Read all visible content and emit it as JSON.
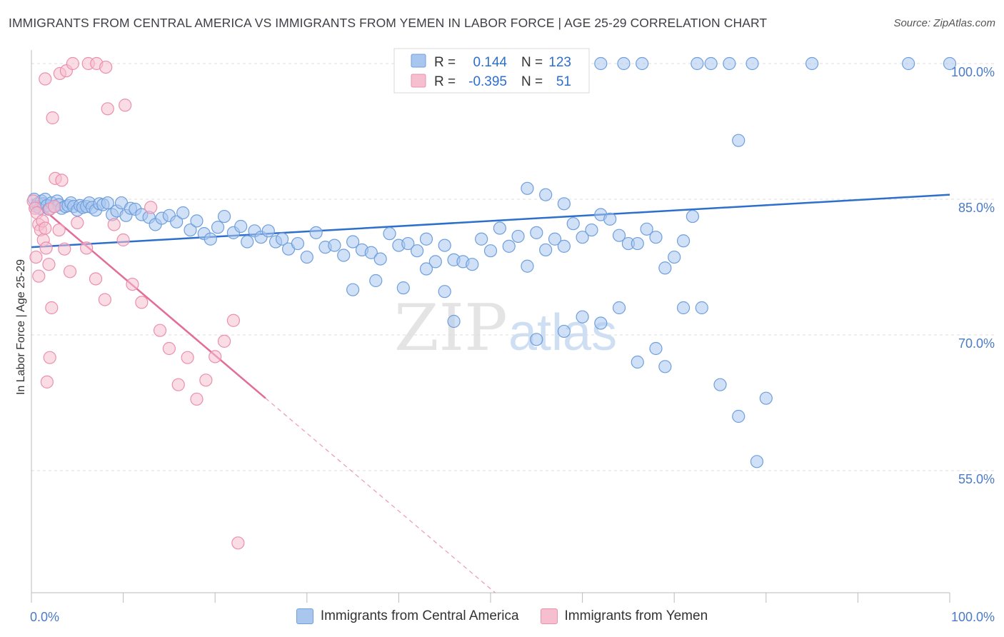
{
  "title": "IMMIGRANTS FROM CENTRAL AMERICA VS IMMIGRANTS FROM YEMEN IN LABOR FORCE | AGE 25-29 CORRELATION CHART",
  "source": "Source: ZipAtlas.com",
  "watermark": {
    "zip": "ZIP",
    "atlas": "atlas"
  },
  "colors": {
    "blue_fill": "#a9c6ee",
    "blue_stroke": "#6f9fdd",
    "blue_line": "#2d6fcc",
    "pink_fill": "#f5bfd0",
    "pink_stroke": "#ec8fae",
    "pink_line": "#e46c98",
    "tick_text": "#4a7bc8",
    "grid": "#dcdcdc"
  },
  "legend_box": {
    "rows": [
      {
        "r_label": "R =",
        "r_value": "0.144",
        "n_label": "N =",
        "n_value": "123"
      },
      {
        "r_label": "R =",
        "r_value": "-0.395",
        "n_label": "N =",
        "n_value": "51"
      }
    ]
  },
  "bottom_legend": [
    "Immigrants from Central America",
    "Immigrants from Yemen"
  ],
  "chart_data": {
    "type": "scatter",
    "xlabel": "",
    "ylabel": "In Labor Force | Age 25-29",
    "xlim": [
      0,
      100
    ],
    "ylim": [
      41.5,
      101.5
    ],
    "x_tick_labels": {
      "left": "0.0%",
      "right": "100.0%"
    },
    "y_ticks": [
      {
        "value": 100,
        "label": "100.0%"
      },
      {
        "value": 85,
        "label": "85.0%"
      },
      {
        "value": 70,
        "label": "70.0%"
      },
      {
        "value": 55,
        "label": "55.0%"
      }
    ],
    "grid": true,
    "series": [
      {
        "name": "Immigrants from Central America",
        "color": "#6f9fdd",
        "r": 0.144,
        "n": 123,
        "trend": {
          "x1": 0,
          "y1": 79.7,
          "x2": 100,
          "y2": 85.5,
          "dashed_from_x": null
        },
        "points": [
          [
            0.3,
            85.0
          ],
          [
            0.5,
            84.2
          ],
          [
            0.7,
            84.5
          ],
          [
            0.9,
            84.0
          ],
          [
            1.1,
            84.8
          ],
          [
            1.3,
            84.5
          ],
          [
            1.5,
            85.0
          ],
          [
            1.7,
            84.3
          ],
          [
            1.9,
            83.9
          ],
          [
            2.2,
            84.6
          ],
          [
            2.5,
            84.2
          ],
          [
            2.8,
            84.8
          ],
          [
            3.0,
            84.4
          ],
          [
            3.3,
            84.0
          ],
          [
            3.7,
            84.2
          ],
          [
            4.0,
            84.3
          ],
          [
            4.3,
            84.6
          ],
          [
            4.6,
            84.2
          ],
          [
            5.0,
            83.8
          ],
          [
            5.3,
            84.3
          ],
          [
            5.6,
            84.1
          ],
          [
            6.0,
            84.2
          ],
          [
            6.3,
            84.6
          ],
          [
            6.6,
            84.1
          ],
          [
            7.0,
            83.8
          ],
          [
            7.4,
            84.5
          ],
          [
            7.8,
            84.4
          ],
          [
            8.3,
            84.6
          ],
          [
            8.8,
            83.3
          ],
          [
            9.3,
            83.7
          ],
          [
            9.8,
            84.6
          ],
          [
            10.3,
            83.2
          ],
          [
            10.8,
            84.0
          ],
          [
            11.3,
            83.9
          ],
          [
            12.0,
            83.3
          ],
          [
            12.8,
            83.0
          ],
          [
            13.5,
            82.2
          ],
          [
            14.2,
            82.9
          ],
          [
            15.0,
            83.2
          ],
          [
            15.8,
            82.5
          ],
          [
            16.5,
            83.5
          ],
          [
            17.3,
            81.6
          ],
          [
            18.0,
            82.6
          ],
          [
            18.8,
            81.2
          ],
          [
            19.5,
            80.6
          ],
          [
            20.3,
            81.9
          ],
          [
            21.0,
            83.1
          ],
          [
            22.0,
            81.3
          ],
          [
            22.8,
            82.0
          ],
          [
            23.5,
            80.3
          ],
          [
            24.3,
            81.5
          ],
          [
            25.0,
            80.8
          ],
          [
            25.8,
            81.5
          ],
          [
            26.6,
            80.3
          ],
          [
            27.3,
            80.6
          ],
          [
            28.0,
            79.5
          ],
          [
            29.0,
            80.1
          ],
          [
            30.0,
            78.6
          ],
          [
            31.0,
            81.3
          ],
          [
            32.0,
            79.7
          ],
          [
            33.0,
            79.9
          ],
          [
            34.0,
            78.8
          ],
          [
            35.0,
            80.3
          ],
          [
            36.0,
            79.4
          ],
          [
            37.0,
            79.1
          ],
          [
            38.0,
            78.4
          ],
          [
            39.0,
            81.2
          ],
          [
            40.0,
            79.9
          ],
          [
            41.0,
            80.1
          ],
          [
            42.0,
            79.3
          ],
          [
            43.0,
            80.6
          ],
          [
            44.0,
            78.1
          ],
          [
            45.0,
            79.9
          ],
          [
            46.0,
            78.3
          ],
          [
            47.0,
            78.1
          ],
          [
            48.0,
            77.8
          ],
          [
            49.0,
            80.6
          ],
          [
            50.0,
            79.3
          ],
          [
            51.0,
            81.8
          ],
          [
            52.0,
            79.8
          ],
          [
            53.0,
            80.9
          ],
          [
            54.0,
            77.6
          ],
          [
            55.0,
            81.3
          ],
          [
            56.0,
            79.4
          ],
          [
            57.0,
            80.6
          ],
          [
            58.0,
            79.8
          ],
          [
            59.0,
            82.3
          ],
          [
            60.0,
            80.8
          ],
          [
            61.0,
            81.6
          ],
          [
            62.0,
            83.3
          ],
          [
            63.0,
            82.8
          ],
          [
            64.0,
            81.0
          ],
          [
            65.0,
            80.1
          ],
          [
            66.0,
            80.1
          ],
          [
            67.0,
            81.7
          ],
          [
            68.0,
            80.8
          ],
          [
            69.0,
            77.4
          ],
          [
            70.0,
            78.6
          ],
          [
            71.0,
            80.4
          ],
          [
            72.0,
            83.1
          ],
          [
            40.5,
            75.2
          ],
          [
            43.0,
            77.3
          ],
          [
            45.0,
            74.8
          ],
          [
            37.5,
            76.0
          ],
          [
            35.0,
            75.0
          ],
          [
            46.0,
            71.5
          ],
          [
            55.0,
            69.5
          ],
          [
            58.0,
            70.4
          ],
          [
            60.0,
            72.0
          ],
          [
            62.0,
            71.3
          ],
          [
            64.0,
            73.0
          ],
          [
            66.0,
            67.0
          ],
          [
            68.0,
            68.5
          ],
          [
            69.0,
            66.5
          ],
          [
            71.0,
            73.0
          ],
          [
            73.0,
            73.0
          ],
          [
            75.0,
            64.5
          ],
          [
            77.0,
            61.0
          ],
          [
            79.0,
            56.0
          ],
          [
            80.0,
            63.0
          ],
          [
            57.5,
            100.0
          ],
          [
            59.5,
            100.0
          ],
          [
            62.0,
            100.0
          ],
          [
            64.5,
            100.0
          ],
          [
            66.5,
            100.0
          ],
          [
            72.5,
            100.0
          ],
          [
            76.0,
            100.0
          ],
          [
            78.5,
            100.0
          ],
          [
            85.0,
            100.0
          ],
          [
            95.5,
            100.0
          ],
          [
            56.0,
            100.0
          ],
          [
            74.0,
            100.0
          ],
          [
            100.0,
            100.0
          ],
          [
            77.0,
            91.5
          ],
          [
            54.0,
            86.2
          ],
          [
            56.0,
            85.5
          ],
          [
            58.0,
            84.5
          ]
        ]
      },
      {
        "name": "Immigrants from Yemen",
        "color": "#ec8fae",
        "r": -0.395,
        "n": 51,
        "trend": {
          "x1": 0,
          "y1": 85.0,
          "x2": 25.5,
          "y2": 63.0,
          "dashed_to_x": 50.5,
          "dashed_to_y": 41.5
        },
        "points": [
          [
            0.2,
            84.8
          ],
          [
            0.4,
            84.0
          ],
          [
            0.6,
            83.5
          ],
          [
            0.8,
            82.2
          ],
          [
            1.0,
            81.6
          ],
          [
            1.3,
            80.5
          ],
          [
            1.6,
            79.6
          ],
          [
            1.9,
            77.8
          ],
          [
            0.5,
            78.6
          ],
          [
            0.8,
            76.5
          ],
          [
            1.2,
            82.6
          ],
          [
            1.5,
            81.8
          ],
          [
            2.0,
            83.9
          ],
          [
            2.5,
            84.2
          ],
          [
            3.0,
            81.6
          ],
          [
            3.6,
            79.5
          ],
          [
            4.2,
            77.0
          ],
          [
            5.0,
            82.4
          ],
          [
            6.0,
            79.6
          ],
          [
            7.0,
            76.2
          ],
          [
            8.0,
            73.9
          ],
          [
            9.0,
            82.2
          ],
          [
            10.0,
            80.5
          ],
          [
            11.0,
            75.6
          ],
          [
            12.0,
            73.6
          ],
          [
            13.0,
            84.1
          ],
          [
            14.0,
            70.5
          ],
          [
            15.0,
            68.5
          ],
          [
            16.0,
            64.5
          ],
          [
            17.0,
            67.5
          ],
          [
            18.0,
            62.9
          ],
          [
            19.0,
            65.0
          ],
          [
            20.0,
            67.6
          ],
          [
            21.0,
            69.3
          ],
          [
            22.0,
            71.6
          ],
          [
            1.5,
            98.3
          ],
          [
            2.3,
            94.0
          ],
          [
            3.1,
            98.9
          ],
          [
            3.8,
            99.2
          ],
          [
            4.5,
            100.0
          ],
          [
            6.2,
            100.0
          ],
          [
            7.1,
            100.0
          ],
          [
            8.1,
            99.6
          ],
          [
            8.3,
            95.0
          ],
          [
            10.2,
            95.4
          ],
          [
            2.6,
            87.3
          ],
          [
            3.3,
            87.1
          ],
          [
            2.2,
            73.0
          ],
          [
            2.0,
            67.5
          ],
          [
            1.7,
            64.8
          ],
          [
            22.5,
            47.0
          ]
        ]
      }
    ]
  }
}
